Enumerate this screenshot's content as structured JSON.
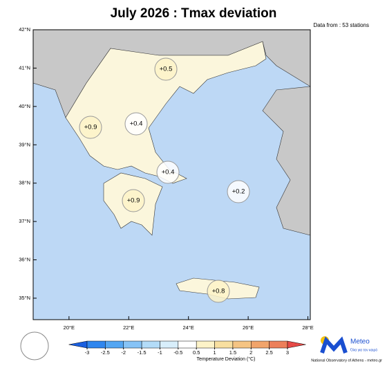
{
  "title": "July 2026 : Tmax deviation",
  "source": "Data from : 53 stations",
  "map": {
    "lonlim": [
      18.8,
      28.08
    ],
    "latlim": [
      34.44,
      42
    ],
    "lat_ticks": [
      {
        "value": 42,
        "label": "42°N"
      },
      {
        "value": 41,
        "label": "41°N"
      },
      {
        "value": 40,
        "label": "40°N"
      },
      {
        "value": 39,
        "label": "39°N"
      },
      {
        "value": 38,
        "label": "38°N"
      },
      {
        "value": 37,
        "label": "37°N"
      },
      {
        "value": 36,
        "label": "36°N"
      },
      {
        "value": 35,
        "label": "35°N"
      }
    ],
    "lon_ticks": [
      {
        "value": 20,
        "label": "20°E"
      },
      {
        "value": 22,
        "label": "22°E"
      },
      {
        "value": 24,
        "label": "24°E"
      },
      {
        "value": 26,
        "label": "26°E"
      },
      {
        "value": 28,
        "label": "28°E"
      }
    ],
    "regions": [
      {
        "value": 0.5,
        "label": "+0.5"
      },
      {
        "value": 0.9,
        "label": "+0.9"
      },
      {
        "value": 0.4,
        "label": "+0.4"
      },
      {
        "value": 0.4,
        "label": "+0.4"
      },
      {
        "value": 0.2,
        "label": "+0.2"
      },
      {
        "value": 0.9,
        "label": "+0.9"
      },
      {
        "value": 0.8,
        "label": "+0.8"
      }
    ]
  },
  "colorbar": {
    "title": "Temperature Deviation (°C)",
    "ticks": [
      -3,
      -2.5,
      -2,
      -1.5,
      -1,
      -0.5,
      0.5,
      1,
      1.5,
      2,
      2.5,
      3
    ],
    "colors": [
      "#1a5fe0",
      "#2f86ee",
      "#54a6f2",
      "#86c3f6",
      "#b3dcf8",
      "#d8eefb",
      "#ffffff",
      "#fdf3c8",
      "#f8dfa0",
      "#f5c483",
      "#f1a46b",
      "#ec7f5a",
      "#e64a47"
    ]
  },
  "footer": {
    "brand": "Meteo",
    "slogan": "Όλα για τον καιρό",
    "credit": "National Observatory of Athens - meteo.gr"
  }
}
